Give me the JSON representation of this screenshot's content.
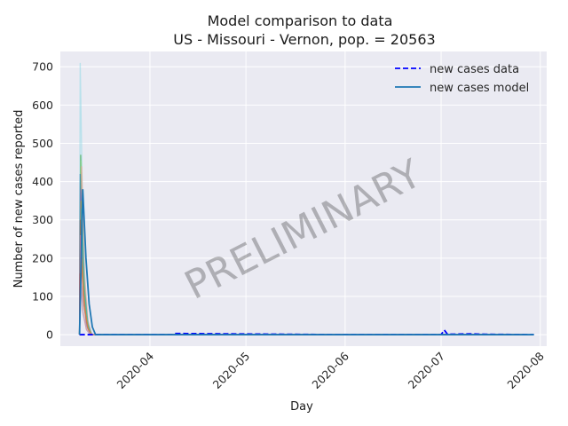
{
  "chart_data": {
    "type": "line",
    "title": "Model comparison to data",
    "subtitle": "US - Missouri - Vernon, pop. = 20563",
    "xlabel": "Day",
    "ylabel": "Number of new cases reported",
    "x_ticks": [
      "2020-04",
      "2020-05",
      "2020-06",
      "2020-07",
      "2020-08"
    ],
    "y_ticks": [
      "0",
      "100",
      "200",
      "300",
      "400",
      "500",
      "600",
      "700"
    ],
    "ylim": [
      -30,
      740
    ],
    "xlim": [
      "2020-03-04",
      "2020-08-03"
    ],
    "grid": true,
    "legend_position": "top-right",
    "watermark": "PRELIMINARY",
    "legend": [
      {
        "label": "new cases data",
        "style": "dashed",
        "color": "#0000ff"
      },
      {
        "label": "new cases model",
        "style": "solid",
        "color": "#1f77b4"
      }
    ],
    "series": [
      {
        "name": "new cases data",
        "color": "#0000ff",
        "style": "dashed",
        "x": [
          "2020-03-10",
          "2020-04-08",
          "2020-04-09",
          "2020-06-01",
          "2020-07-01",
          "2020-07-02",
          "2020-07-03",
          "2020-07-10",
          "2020-07-15",
          "2020-07-30"
        ],
        "y": [
          0,
          0,
          3,
          0,
          0,
          12,
          1,
          2,
          1,
          0
        ]
      },
      {
        "name": "new cases model",
        "color": "#1f77b4",
        "style": "solid",
        "x": [
          "2020-03-10",
          "2020-03-11",
          "2020-03-12",
          "2020-03-13",
          "2020-03-14",
          "2020-03-15",
          "2020-07-30"
        ],
        "y": [
          0,
          380,
          200,
          80,
          20,
          0,
          0
        ]
      }
    ],
    "ensemble_peaks": [
      {
        "color": "#8fd8e6",
        "peak": 710
      },
      {
        "color": "#2ca02c",
        "peak": 470
      },
      {
        "color": "#98df8a",
        "peak": 455
      },
      {
        "color": "#ff9896",
        "peak": 440
      },
      {
        "color": "#1f77b4",
        "peak": 420
      },
      {
        "color": "#9467bd",
        "peak": 380
      },
      {
        "color": "#bcbd22",
        "peak": 350
      },
      {
        "color": "#17becf",
        "peak": 330
      },
      {
        "color": "#8c564b",
        "peak": 300
      },
      {
        "color": "#e377c2",
        "peak": 260
      },
      {
        "color": "#7f7f7f",
        "peak": 220
      },
      {
        "color": "#ff7f0e",
        "peak": 200
      },
      {
        "color": "#d62728",
        "peak": 160
      },
      {
        "color": "#aec7e8",
        "peak": 140
      }
    ]
  }
}
